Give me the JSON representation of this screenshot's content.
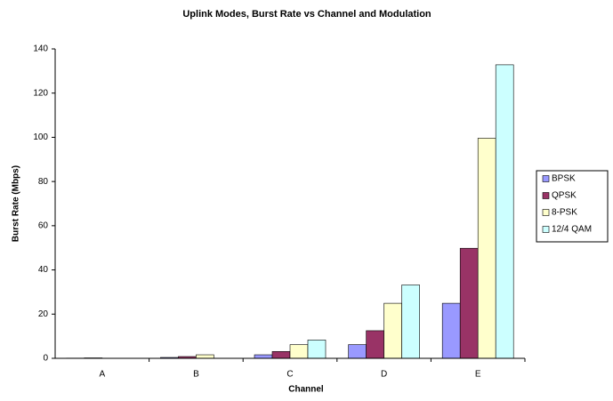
{
  "chart_data": {
    "type": "bar",
    "title": "Uplink Modes, Burst Rate vs Channel and Modulation",
    "x_label": "Channel",
    "y_label": "Burst Rate (Mbps)",
    "categories": [
      "A",
      "B",
      "C",
      "D",
      "E"
    ],
    "series": [
      {
        "name": "BPSK",
        "color": "#9999ff",
        "values": [
          0.1,
          0.4,
          1.6,
          6.2,
          24.9
        ]
      },
      {
        "name": "QPSK",
        "color": "#993366",
        "values": [
          0.2,
          0.8,
          3.1,
          12.5,
          49.8
        ]
      },
      {
        "name": "8-PSK",
        "color": "#ffffcc",
        "values": [
          0,
          1.6,
          6.2,
          24.9,
          99.6
        ]
      },
      {
        "name": "12/4 QAM",
        "color": "#ccffff",
        "values": [
          0,
          0,
          8.3,
          33.2,
          132.8
        ]
      }
    ],
    "ylim": [
      0,
      140
    ],
    "yticks": [
      0,
      20,
      40,
      60,
      80,
      100,
      120,
      140
    ],
    "legend": "right"
  }
}
